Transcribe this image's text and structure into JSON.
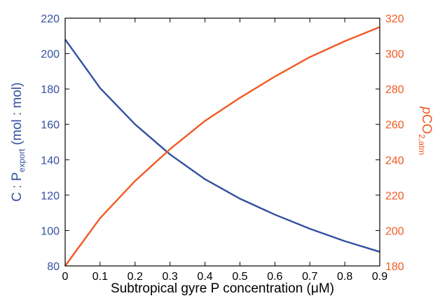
{
  "chart_data": {
    "type": "line",
    "colors": {
      "left": "#3350a0",
      "right": "#f15a22",
      "axis": "#000000"
    },
    "x": [
      0,
      0.1,
      0.2,
      0.3,
      0.4,
      0.5,
      0.6,
      0.7,
      0.8,
      0.9
    ],
    "xlim": [
      0,
      0.9
    ],
    "xticks": [
      "0",
      "0.1",
      "0.2",
      "0.3",
      "0.4",
      "0.5",
      "0.6",
      "0.7",
      "0.8",
      "0.9"
    ],
    "xlabel": "Subtropical gyre P concentration (μM)",
    "left_axis": {
      "label_main": "C : P",
      "label_sub": "export",
      "label_unit": " (mol : mol)",
      "ylim": [
        80,
        220
      ],
      "ticks": [
        "80",
        "100",
        "120",
        "140",
        "160",
        "180",
        "200",
        "220"
      ]
    },
    "right_axis": {
      "label_p": "p",
      "label_main": "CO",
      "label_sub": "2,atm",
      "ylim": [
        180,
        320
      ],
      "ticks": [
        "180",
        "200",
        "220",
        "240",
        "260",
        "280",
        "300",
        "320"
      ]
    },
    "series": [
      {
        "axis": "left",
        "values": [
          208,
          180.5,
          160,
          143,
          129,
          118,
          109,
          101,
          94,
          88
        ]
      },
      {
        "axis": "right",
        "values": [
          180,
          207,
          228,
          246,
          262,
          275,
          287,
          298,
          307,
          315
        ]
      }
    ]
  }
}
